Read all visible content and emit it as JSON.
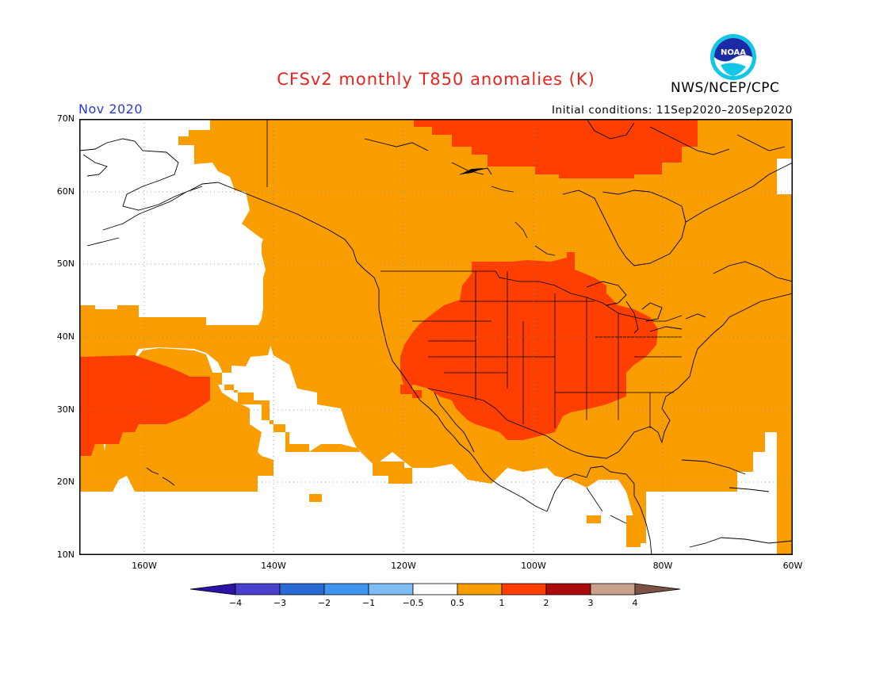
{
  "header": {
    "title": "CFSv2 monthly T850 anomalies (K)",
    "org": "NWS/NCEP/CPC",
    "logo_text": "NOAA",
    "month": "Nov 2020",
    "initial_conditions": "Initial conditions: 11Sep2020–20Sep2020"
  },
  "axes": {
    "lat_labels": [
      "70N",
      "60N",
      "50N",
      "40N",
      "30N",
      "20N",
      "10N"
    ],
    "lon_labels": [
      "160W",
      "140W",
      "120W",
      "100W",
      "80W",
      "60W"
    ]
  },
  "colorbar": {
    "labels": [
      "−4",
      "−3",
      "−2",
      "−1",
      "−0.5",
      "0.5",
      "1",
      "2",
      "3",
      "4"
    ],
    "colors": [
      "#2d12a6",
      "#4b3fce",
      "#2a6ad6",
      "#3f94f0",
      "#7ebcf5",
      "#ffffff",
      "#fa9d00",
      "#ff3f00",
      "#a90a0a",
      "#c8a08c",
      "#7b5244"
    ]
  },
  "colors": {
    "anomaly_0_5_to_1": "#fa9d00",
    "anomaly_1_to_2": "#ff3f00"
  }
}
